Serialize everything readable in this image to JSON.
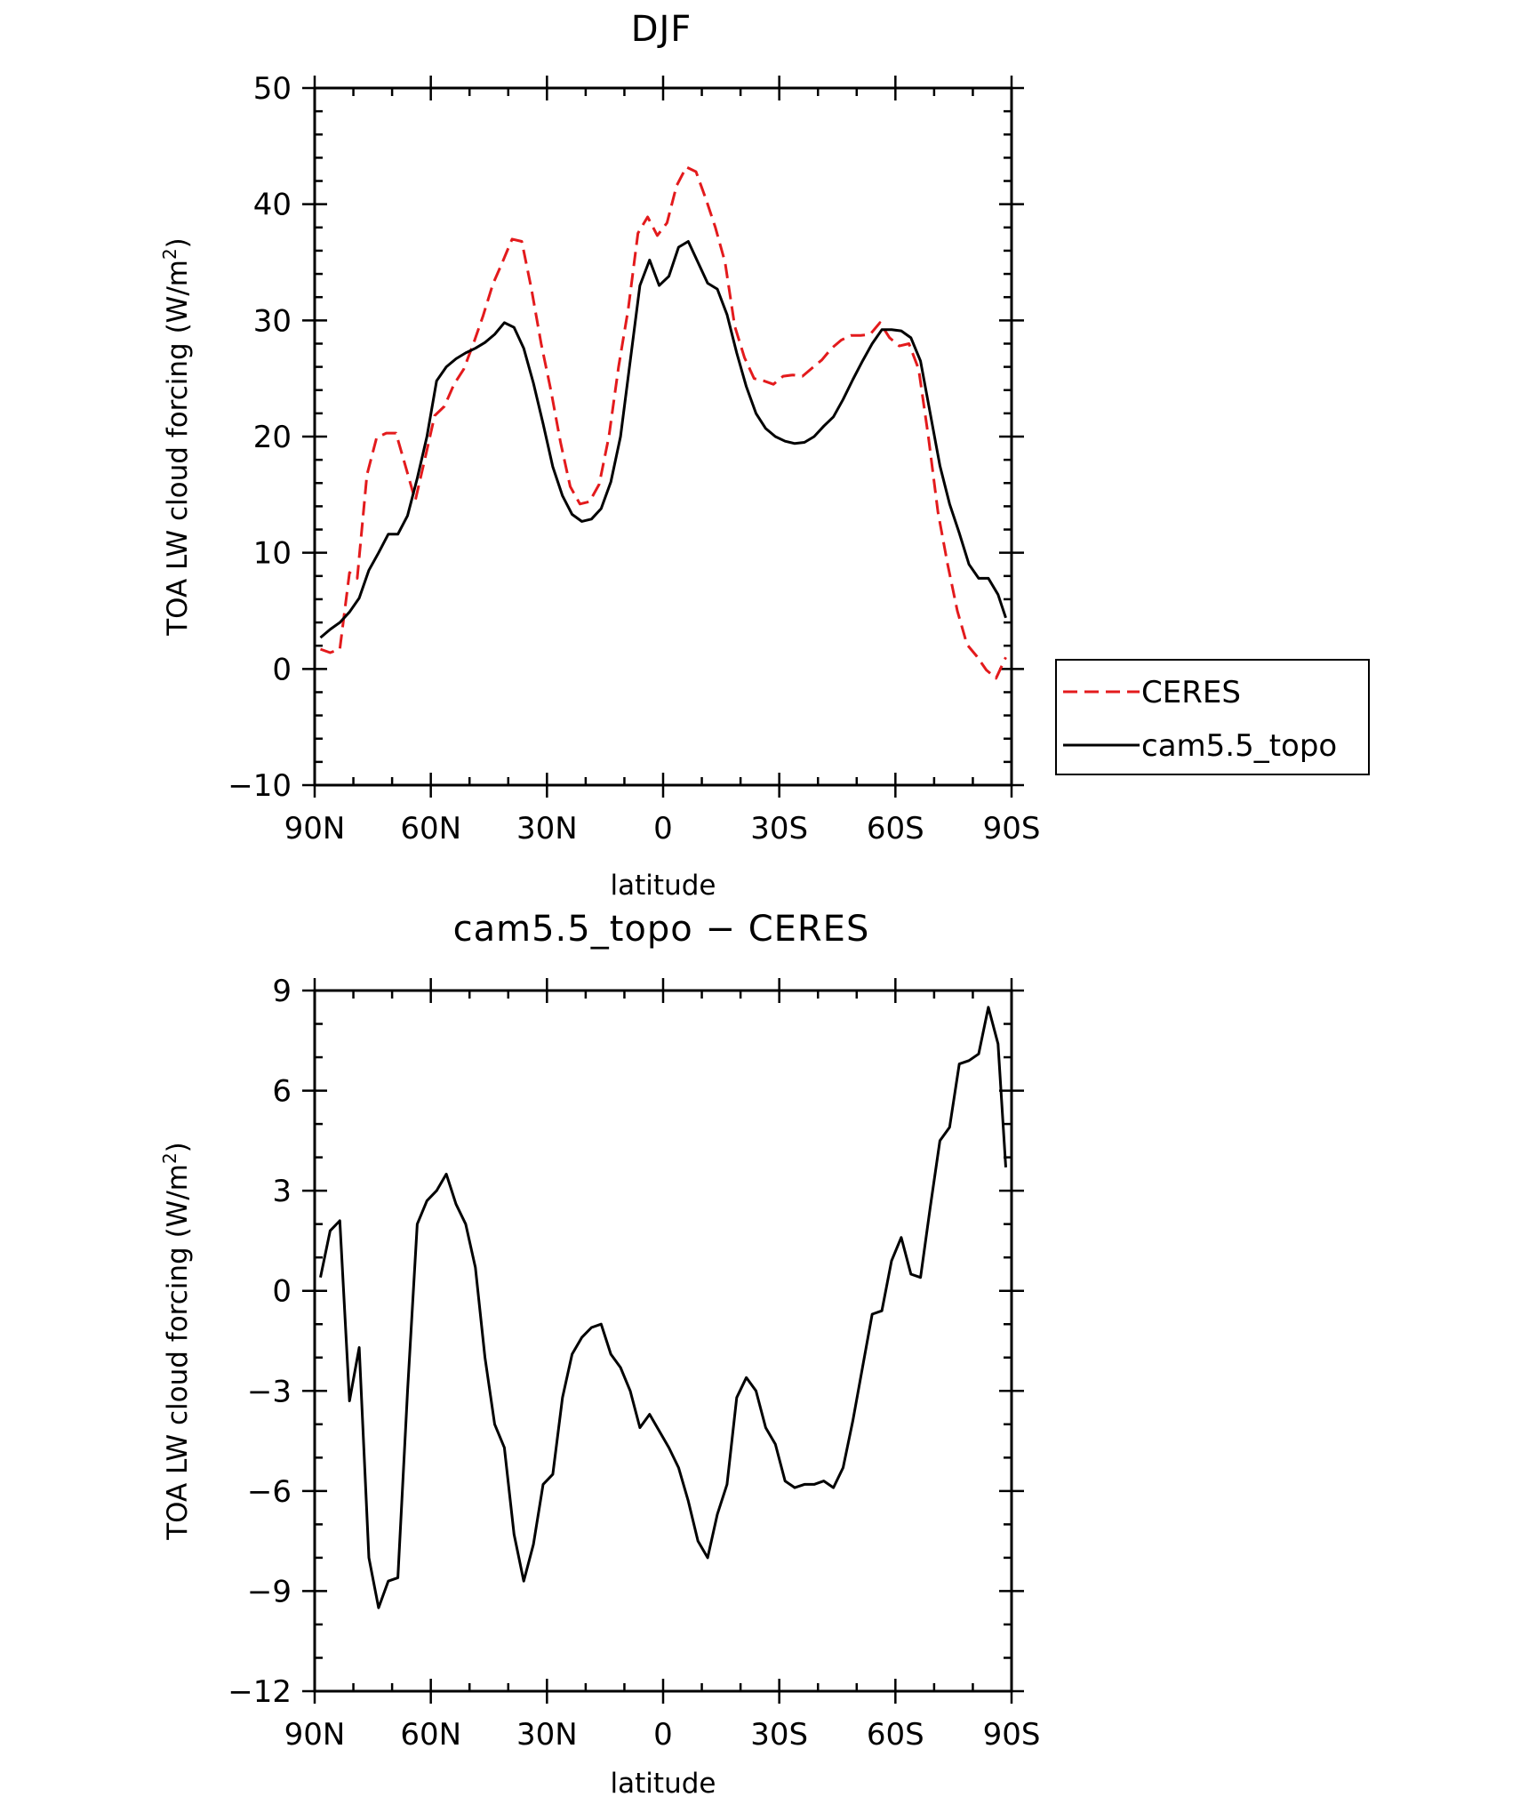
{
  "chart_data": [
    {
      "type": "line",
      "title": "DJF",
      "xlabel": "latitude",
      "ylabel": "TOA LW cloud forcing (W/m",
      "ylabel_sup": "2",
      "ylabel_end": ")",
      "xlim": [
        90,
        -90
      ],
      "ylim": [
        -10,
        50
      ],
      "yticks": [
        -10,
        0,
        10,
        20,
        30,
        40,
        50
      ],
      "ytick_labels": [
        "−10",
        "0",
        "10",
        "20",
        "30",
        "40",
        "50"
      ],
      "xticks": [
        90,
        60,
        30,
        0,
        -30,
        -60,
        -90
      ],
      "xtick_labels": [
        "90N",
        "60N",
        "30N",
        "0",
        "30S",
        "60S",
        "90S"
      ],
      "legend_position": "right",
      "series": [
        {
          "name": "CERES",
          "color": "#e31a1c",
          "dash": "dashed",
          "points": [
            [
              88.5,
              1.7
            ],
            [
              86,
              1.4
            ],
            [
              83.5,
              1.7
            ],
            [
              81,
              8.3
            ],
            [
              79,
              7.8
            ],
            [
              76.5,
              16.7
            ],
            [
              74,
              19.9
            ],
            [
              71.5,
              20.3
            ],
            [
              69,
              20.3
            ],
            [
              66.5,
              17.4
            ],
            [
              64,
              14.5
            ],
            [
              61.5,
              18.1
            ],
            [
              59,
              21.8
            ],
            [
              56.5,
              22.6
            ],
            [
              54,
              24.5
            ],
            [
              51.5,
              25.8
            ],
            [
              49,
              28.0
            ],
            [
              46.5,
              30.4
            ],
            [
              44,
              33.1
            ],
            [
              41.5,
              35.0
            ],
            [
              39,
              37.0
            ],
            [
              36.5,
              36.8
            ],
            [
              34,
              32.7
            ],
            [
              31.5,
              28.0
            ],
            [
              29,
              24.0
            ],
            [
              26.5,
              19.5
            ],
            [
              24,
              15.7
            ],
            [
              21.5,
              14.2
            ],
            [
              19,
              14.4
            ],
            [
              16.5,
              15.9
            ],
            [
              14,
              20.0
            ],
            [
              11.5,
              26.0
            ],
            [
              9,
              31.0
            ],
            [
              6.5,
              37.5
            ],
            [
              4,
              38.9
            ],
            [
              1.5,
              37.3
            ],
            [
              -1,
              38.4
            ],
            [
              -3.5,
              41.6
            ],
            [
              -6,
              43.2
            ],
            [
              -8.5,
              42.8
            ],
            [
              -11,
              40.5
            ],
            [
              -13.5,
              38.0
            ],
            [
              -16,
              35.0
            ],
            [
              -18.5,
              29.5
            ],
            [
              -21,
              26.8
            ],
            [
              -23.5,
              25.0
            ],
            [
              -26,
              24.8
            ],
            [
              -28.5,
              24.5
            ],
            [
              -31,
              25.2
            ],
            [
              -33.5,
              25.3
            ],
            [
              -36,
              25.2
            ],
            [
              -38.5,
              25.9
            ],
            [
              -41,
              26.6
            ],
            [
              -43.5,
              27.6
            ],
            [
              -46,
              28.3
            ],
            [
              -48.5,
              28.7
            ],
            [
              -51,
              28.7
            ],
            [
              -53.5,
              28.8
            ],
            [
              -56,
              29.8
            ],
            [
              -58.5,
              28.5
            ],
            [
              -61,
              27.8
            ],
            [
              -63.5,
              28.0
            ],
            [
              -66,
              25.8
            ],
            [
              -68.5,
              20.0
            ],
            [
              -71,
              13.5
            ],
            [
              -73.5,
              9.0
            ],
            [
              -76,
              5.0
            ],
            [
              -78.5,
              2.1
            ],
            [
              -81,
              1.1
            ],
            [
              -83.5,
              -0.1
            ],
            [
              -86,
              -0.8
            ],
            [
              -88.5,
              1.0
            ]
          ]
        },
        {
          "name": "cam5.5_topo",
          "color": "#000000",
          "dash": "solid",
          "points": [
            [
              88.5,
              2.7
            ],
            [
              86,
              3.4
            ],
            [
              83.5,
              4.0
            ],
            [
              81,
              4.9
            ],
            [
              78.5,
              6.1
            ],
            [
              76,
              8.5
            ],
            [
              73.5,
              10.0
            ],
            [
              71,
              11.6
            ],
            [
              68.5,
              11.6
            ],
            [
              66,
              13.2
            ],
            [
              63.5,
              16.4
            ],
            [
              61,
              20.0
            ],
            [
              58.5,
              24.8
            ],
            [
              56,
              26.0
            ],
            [
              53.5,
              26.7
            ],
            [
              51,
              27.2
            ],
            [
              48.5,
              27.6
            ],
            [
              46,
              28.1
            ],
            [
              43.5,
              28.8
            ],
            [
              41,
              29.8
            ],
            [
              38.5,
              29.4
            ],
            [
              36,
              27.6
            ],
            [
              33.5,
              24.6
            ],
            [
              31,
              21.1
            ],
            [
              28.5,
              17.4
            ],
            [
              26,
              14.9
            ],
            [
              23.5,
              13.3
            ],
            [
              21,
              12.7
            ],
            [
              18.5,
              12.9
            ],
            [
              16,
              13.8
            ],
            [
              13.5,
              16.1
            ],
            [
              11,
              20.0
            ],
            [
              8.5,
              26.5
            ],
            [
              6,
              33.0
            ],
            [
              3.5,
              35.2
            ],
            [
              1,
              33.0
            ],
            [
              -1.5,
              33.8
            ],
            [
              -4,
              36.3
            ],
            [
              -6.5,
              36.8
            ],
            [
              -9,
              35.0
            ],
            [
              -11.5,
              33.2
            ],
            [
              -14,
              32.7
            ],
            [
              -16.5,
              30.5
            ],
            [
              -19,
              27.2
            ],
            [
              -21.5,
              24.3
            ],
            [
              -24,
              22.0
            ],
            [
              -26.5,
              20.7
            ],
            [
              -29,
              20.0
            ],
            [
              -31.5,
              19.6
            ],
            [
              -34,
              19.4
            ],
            [
              -36.5,
              19.5
            ],
            [
              -39,
              20.0
            ],
            [
              -41.5,
              20.9
            ],
            [
              -44,
              21.7
            ],
            [
              -46.5,
              23.2
            ],
            [
              -49,
              24.9
            ],
            [
              -51.5,
              26.5
            ],
            [
              -54,
              28.0
            ],
            [
              -56.5,
              29.2
            ],
            [
              -59,
              29.2
            ],
            [
              -61.5,
              29.1
            ],
            [
              -64,
              28.5
            ],
            [
              -66.5,
              26.5
            ],
            [
              -69,
              22.0
            ],
            [
              -71.5,
              17.5
            ],
            [
              -74,
              14.2
            ],
            [
              -76.5,
              11.7
            ],
            [
              -79,
              9.0
            ],
            [
              -81.5,
              7.8
            ],
            [
              -84,
              7.8
            ],
            [
              -86.5,
              6.4
            ],
            [
              -88.5,
              4.4
            ]
          ]
        }
      ]
    },
    {
      "type": "line",
      "title": "cam5.5_topo − CERES",
      "xlabel": "latitude",
      "ylabel": "TOA LW cloud forcing (W/m",
      "ylabel_sup": "2",
      "ylabel_end": ")",
      "xlim": [
        90,
        -90
      ],
      "ylim": [
        -12,
        9
      ],
      "yticks": [
        -12,
        -9,
        -6,
        -3,
        0,
        3,
        6,
        9
      ],
      "ytick_labels": [
        "−12",
        "−9",
        "−6",
        "−3",
        "0",
        "3",
        "6",
        "9"
      ],
      "xticks": [
        90,
        60,
        30,
        0,
        -30,
        -60,
        -90
      ],
      "xtick_labels": [
        "90N",
        "60N",
        "30N",
        "0",
        "30S",
        "60S",
        "90S"
      ],
      "series": [
        {
          "color": "#000000",
          "dash": "solid",
          "points": [
            [
              88.5,
              0.4
            ],
            [
              86,
              1.8
            ],
            [
              83.5,
              2.1
            ],
            [
              81,
              -3.3
            ],
            [
              78.5,
              -1.7
            ],
            [
              76,
              -8.0
            ],
            [
              73.5,
              -9.5
            ],
            [
              71,
              -8.7
            ],
            [
              68.5,
              -8.6
            ],
            [
              66,
              -3.0
            ],
            [
              63.5,
              2.0
            ],
            [
              61,
              2.7
            ],
            [
              58.5,
              3.0
            ],
            [
              56,
              3.5
            ],
            [
              53.5,
              2.6
            ],
            [
              51,
              2.0
            ],
            [
              48.5,
              0.7
            ],
            [
              46,
              -2.0
            ],
            [
              43.5,
              -4.0
            ],
            [
              41,
              -4.7
            ],
            [
              38.5,
              -7.3
            ],
            [
              36,
              -8.7
            ],
            [
              33.5,
              -7.6
            ],
            [
              31,
              -5.8
            ],
            [
              28.5,
              -5.5
            ],
            [
              26,
              -3.2
            ],
            [
              23.5,
              -1.9
            ],
            [
              21,
              -1.4
            ],
            [
              18.5,
              -1.1
            ],
            [
              16,
              -1.0
            ],
            [
              13.5,
              -1.9
            ],
            [
              11,
              -2.3
            ],
            [
              8.5,
              -3.0
            ],
            [
              6,
              -4.1
            ],
            [
              3.5,
              -3.7
            ],
            [
              1,
              -4.2
            ],
            [
              -1.5,
              -4.7
            ],
            [
              -4,
              -5.3
            ],
            [
              -6.5,
              -6.3
            ],
            [
              -9,
              -7.5
            ],
            [
              -11.5,
              -8.0
            ],
            [
              -14,
              -6.7
            ],
            [
              -16.5,
              -5.8
            ],
            [
              -19,
              -3.2
            ],
            [
              -21.5,
              -2.6
            ],
            [
              -24,
              -3.0
            ],
            [
              -26.5,
              -4.1
            ],
            [
              -29,
              -4.6
            ],
            [
              -31.5,
              -5.7
            ],
            [
              -34,
              -5.9
            ],
            [
              -36.5,
              -5.8
            ],
            [
              -39,
              -5.8
            ],
            [
              -41.5,
              -5.7
            ],
            [
              -44,
              -5.9
            ],
            [
              -46.5,
              -5.3
            ],
            [
              -49,
              -3.9
            ],
            [
              -51.5,
              -2.3
            ],
            [
              -54,
              -0.7
            ],
            [
              -56.5,
              -0.6
            ],
            [
              -59,
              0.9
            ],
            [
              -61.5,
              1.6
            ],
            [
              -64,
              0.5
            ],
            [
              -66.5,
              0.4
            ],
            [
              -69,
              2.5
            ],
            [
              -71.5,
              4.5
            ],
            [
              -74,
              4.9
            ],
            [
              -76.5,
              6.8
            ],
            [
              -79,
              6.9
            ],
            [
              -81.5,
              7.1
            ],
            [
              -84,
              8.5
            ],
            [
              -86.5,
              7.4
            ],
            [
              -88.5,
              3.7
            ]
          ]
        }
      ]
    }
  ]
}
